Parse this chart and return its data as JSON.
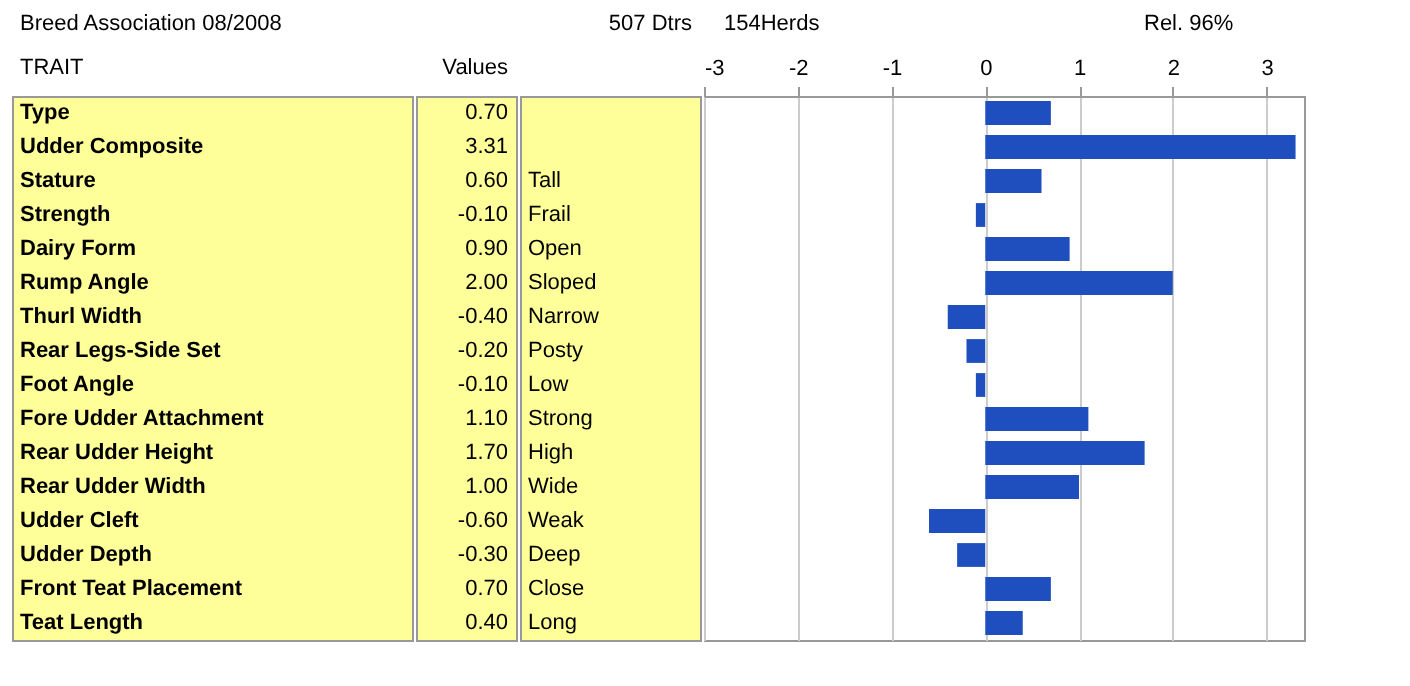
{
  "chart_data": {
    "type": "bar",
    "orientation": "horizontal",
    "title": "Breed Association 08/2008",
    "ylabel": "TRAIT",
    "categories": [
      "Type",
      "Udder Composite",
      "Stature",
      "Strength",
      "Dairy Form",
      "Rump Angle",
      "Thurl Width",
      "Rear Legs-Side Set",
      "Foot Angle",
      "Fore Udder Attachment",
      "Rear Udder Height",
      "Rear Udder Width",
      "Udder Cleft",
      "Udder Depth",
      "Front Teat Placement",
      "Teat Length"
    ],
    "values": [
      0.7,
      3.31,
      0.6,
      -0.1,
      0.9,
      2.0,
      -0.4,
      -0.2,
      -0.1,
      1.1,
      1.7,
      1.0,
      -0.6,
      -0.3,
      0.7,
      0.4
    ],
    "value_labels": [
      "0.70",
      "3.31",
      "0.60",
      "-0.10",
      "0.90",
      "2.00",
      "-0.40",
      "-0.20",
      "-0.10",
      "1.10",
      "1.70",
      "1.00",
      "-0.60",
      "-0.30",
      "0.70",
      "0.40"
    ],
    "color": "#1f4fbf",
    "x2lim": [
      -3,
      3.4
    ],
    "x2ticks": [
      -3,
      -2,
      -1,
      0,
      1,
      2,
      3
    ],
    "grid": "x",
    "annotations": [
      "507 Dtrs",
      "154Herds",
      "Rel. 96%",
      "Values",
      "Tall",
      "Frail",
      "Open",
      "Sloped",
      "Narrow",
      "Posty",
      "Low",
      "Strong",
      "High",
      "Wide",
      "Weak",
      "Deep",
      "Close",
      "Long"
    ]
  }
}
